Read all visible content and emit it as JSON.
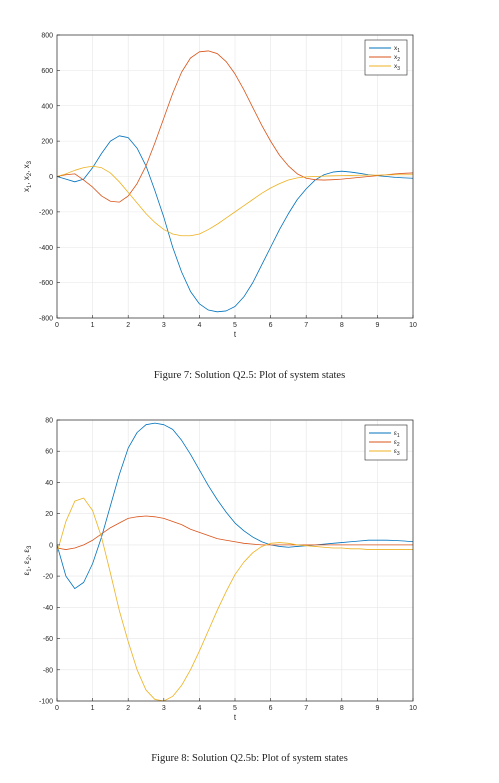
{
  "chart_data": [
    {
      "type": "line",
      "xlabel": "t",
      "ylabel": "x1, x2, x3",
      "xlim": [
        0,
        10
      ],
      "ylim": [
        -800,
        800
      ],
      "xticks": [
        0,
        1,
        2,
        3,
        4,
        5,
        6,
        7,
        8,
        9,
        10
      ],
      "yticks": [
        -800,
        -600,
        -400,
        -200,
        0,
        200,
        400,
        600,
        800
      ],
      "grid": true,
      "legend_position": "top-right",
      "x": [
        0,
        0.25,
        0.5,
        0.75,
        1,
        1.25,
        1.5,
        1.75,
        2,
        2.25,
        2.5,
        2.75,
        3,
        3.25,
        3.5,
        3.75,
        4,
        4.25,
        4.5,
        4.75,
        5,
        5.25,
        5.5,
        5.75,
        6,
        6.25,
        6.5,
        6.75,
        7,
        7.25,
        7.5,
        7.75,
        8,
        8.25,
        8.5,
        8.75,
        9,
        9.25,
        9.5,
        9.75,
        10
      ],
      "series": [
        {
          "name": "x1",
          "subscript": "1",
          "base": "x",
          "color": "#0072BD",
          "values": [
            0,
            -15,
            -30,
            -15,
            50,
            130,
            200,
            230,
            220,
            160,
            60,
            -80,
            -230,
            -400,
            -540,
            -650,
            -720,
            -755,
            -765,
            -760,
            -735,
            -680,
            -600,
            -500,
            -400,
            -300,
            -210,
            -130,
            -70,
            -20,
            10,
            25,
            30,
            25,
            18,
            10,
            5,
            0,
            -5,
            -8,
            -10
          ]
        },
        {
          "name": "x2",
          "subscript": "2",
          "base": "x",
          "color": "#D95319",
          "values": [
            0,
            10,
            15,
            -20,
            -60,
            -110,
            -140,
            -145,
            -110,
            -40,
            60,
            190,
            330,
            470,
            590,
            670,
            705,
            710,
            695,
            650,
            580,
            490,
            390,
            290,
            200,
            120,
            60,
            15,
            -10,
            -18,
            -20,
            -18,
            -15,
            -10,
            -5,
            0,
            5,
            10,
            15,
            18,
            20
          ]
        },
        {
          "name": "x3",
          "subscript": "3",
          "base": "x",
          "color": "#EDB120",
          "values": [
            0,
            15,
            35,
            50,
            58,
            50,
            20,
            -30,
            -90,
            -150,
            -210,
            -260,
            -300,
            -325,
            -335,
            -335,
            -325,
            -300,
            -270,
            -235,
            -200,
            -165,
            -130,
            -95,
            -65,
            -40,
            -20,
            -8,
            -2,
            0,
            2,
            4,
            5,
            6,
            7,
            8,
            8,
            9,
            10,
            10,
            10
          ]
        }
      ]
    },
    {
      "type": "line",
      "xlabel": "t",
      "ylabel": "ε1, ε2, ε3",
      "xlim": [
        0,
        10
      ],
      "ylim": [
        -100,
        80
      ],
      "xticks": [
        0,
        1,
        2,
        3,
        4,
        5,
        6,
        7,
        8,
        9,
        10
      ],
      "yticks": [
        -100,
        -80,
        -60,
        -40,
        -20,
        0,
        20,
        40,
        60,
        80
      ],
      "grid": true,
      "legend_position": "top-right",
      "x": [
        0,
        0.25,
        0.5,
        0.75,
        1,
        1.25,
        1.5,
        1.75,
        2,
        2.25,
        2.5,
        2.75,
        3,
        3.25,
        3.5,
        3.75,
        4,
        4.25,
        4.5,
        4.75,
        5,
        5.25,
        5.5,
        5.75,
        6,
        6.25,
        6.5,
        6.75,
        7,
        7.25,
        7.5,
        7.75,
        8,
        8.25,
        8.5,
        8.75,
        9,
        9.25,
        9.5,
        9.75,
        10
      ],
      "series": [
        {
          "name": "ε1",
          "subscript": "1",
          "base": "ε",
          "color": "#0072BD",
          "values": [
            0,
            -20,
            -28,
            -24,
            -12,
            5,
            25,
            45,
            62,
            72,
            77,
            78,
            77,
            74,
            67,
            58,
            48,
            38,
            29,
            21,
            14,
            9,
            5,
            2,
            0,
            -1,
            -1.5,
            -1,
            -0.5,
            0,
            0.5,
            1,
            1.5,
            2,
            2.5,
            3,
            3,
            3,
            2.8,
            2.5,
            2
          ]
        },
        {
          "name": "ε2",
          "subscript": "2",
          "base": "ε",
          "color": "#D95319",
          "values": [
            -2,
            -3,
            -2,
            0,
            3,
            7,
            11,
            14,
            17,
            18,
            18.5,
            18,
            17,
            15,
            13,
            10,
            8,
            6,
            4,
            3,
            2,
            1,
            0.5,
            0,
            0,
            0,
            0,
            0,
            0,
            0,
            0,
            0,
            0,
            0,
            0,
            0,
            0,
            0,
            0,
            0,
            0
          ]
        },
        {
          "name": "ε3",
          "subscript": "3",
          "base": "ε",
          "color": "#EDB120",
          "values": [
            -5,
            15,
            28,
            30,
            22,
            5,
            -18,
            -42,
            -62,
            -80,
            -93,
            -99,
            -100,
            -97,
            -90,
            -80,
            -68,
            -55,
            -42,
            -30,
            -19,
            -11,
            -5,
            -1,
            1,
            1.5,
            1,
            0,
            -0.5,
            -1,
            -1.5,
            -2,
            -2,
            -2.5,
            -2.5,
            -3,
            -3,
            -3,
            -3,
            -3,
            -3
          ]
        }
      ]
    }
  ],
  "captions": {
    "fig7": "Figure 7: Solution Q2.5: Plot of system states",
    "fig8": "Figure 8: Solution Q2.5b: Plot of system states"
  }
}
